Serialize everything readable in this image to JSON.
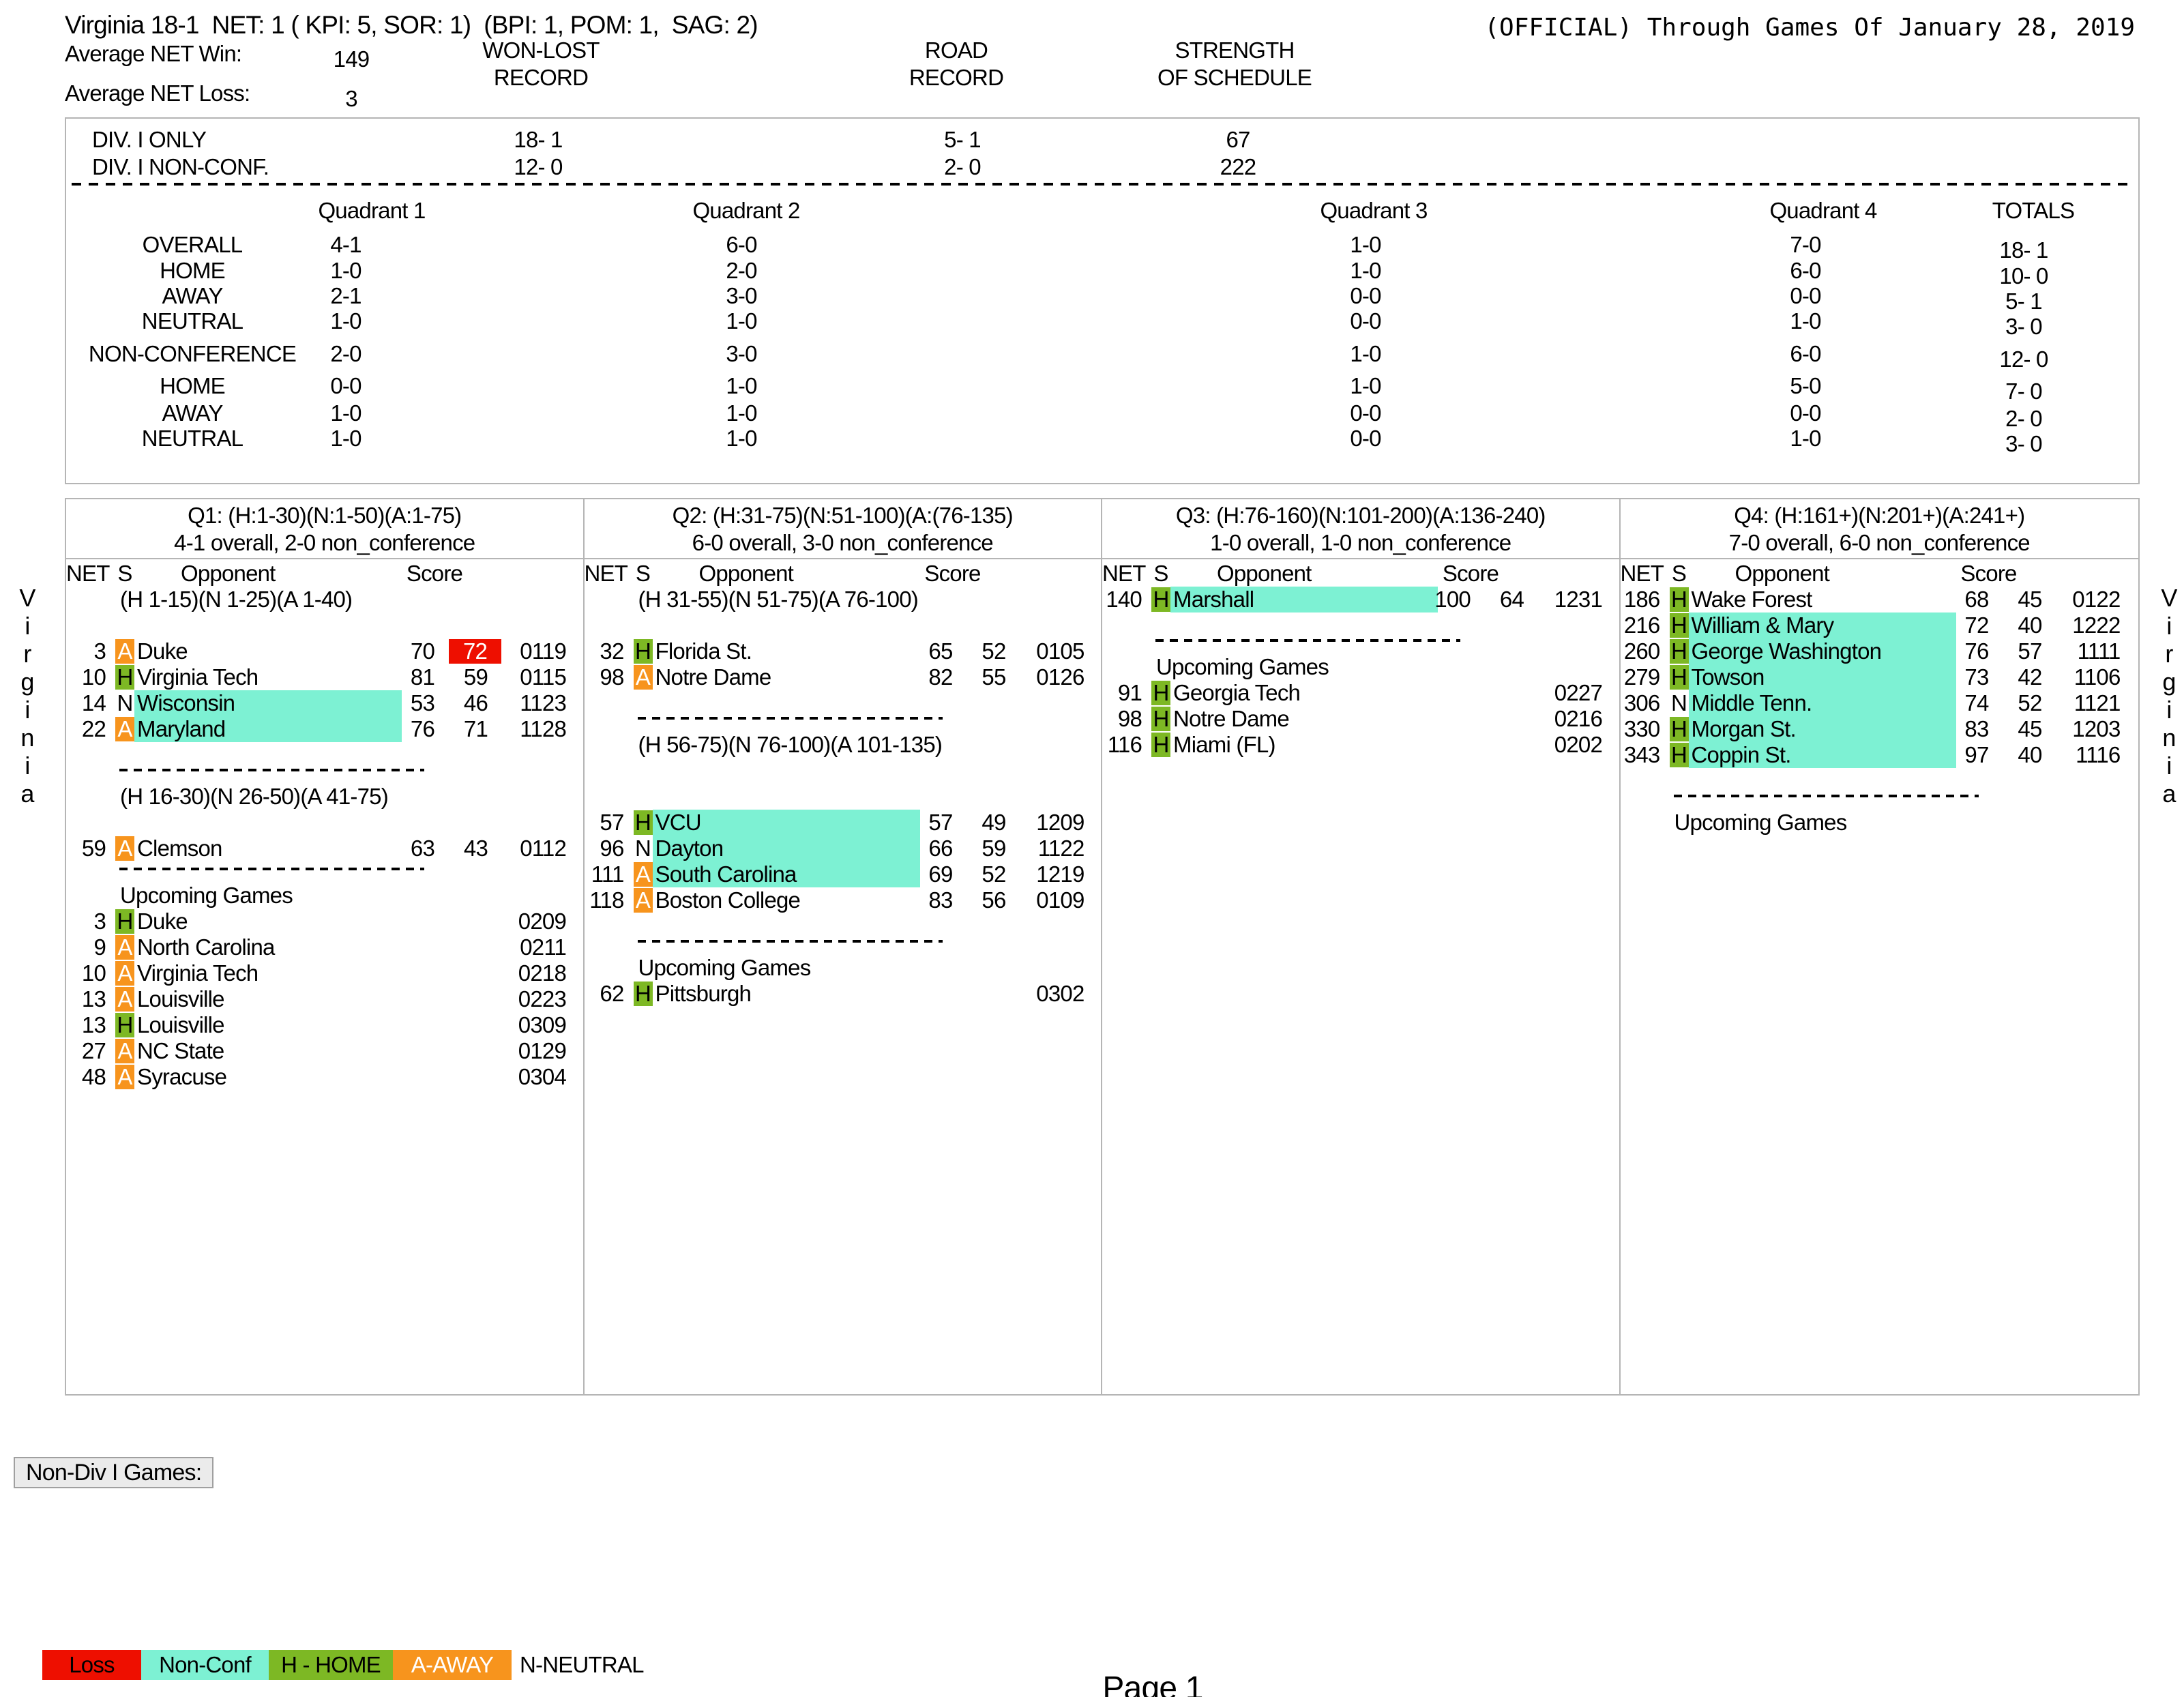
{
  "colors": {
    "loss_red": "#ee0f00",
    "nonconf_aqua": "#7df1d3",
    "home_green": "#7db824",
    "away_orange": "#f7941d",
    "border_gray": "#b5b5b5"
  },
  "header": {
    "title": "Virginia 18-1  NET: 1 ( KPI: 5, SOR: 1)  (BPI: 1, POM: 1,  SAG: 2)",
    "official": "(OFFICIAL) Through Games Of January 28, 2019",
    "avg_net_win_label": "Average NET Win:",
    "avg_net_win": "149",
    "avg_net_loss_label": "Average NET Loss:",
    "avg_net_loss": "3",
    "won_lost": [
      "WON-LOST",
      "RECORD"
    ],
    "road": [
      "ROAD",
      "RECORD"
    ],
    "sos": [
      "STRENGTH",
      "OF SCHEDULE"
    ]
  },
  "summary": {
    "div_rows": [
      {
        "label": "DIV. I ONLY",
        "won_lost": "18- 1",
        "road": "5- 1",
        "sos": "67"
      },
      {
        "label": "DIV. I NON-CONF.",
        "won_lost": "12- 0",
        "road": "2- 0",
        "sos": "222"
      }
    ],
    "quadrant_headers": [
      "Quadrant 1",
      "Quadrant 2",
      "Quadrant 3",
      "Quadrant 4",
      "TOTALS"
    ],
    "rows": [
      {
        "label": "OVERALL",
        "q1": "4-1",
        "q2": "6-0",
        "q3": "1-0",
        "q4": "7-0",
        "total": "18- 1"
      },
      {
        "label": "HOME",
        "q1": "1-0",
        "q2": "2-0",
        "q3": "1-0",
        "q4": "6-0",
        "total": "10- 0"
      },
      {
        "label": "AWAY",
        "q1": "2-1",
        "q2": "3-0",
        "q3": "0-0",
        "q4": "0-0",
        "total": "5- 1"
      },
      {
        "label": "NEUTRAL",
        "q1": "1-0",
        "q2": "1-0",
        "q3": "0-0",
        "q4": "1-0",
        "total": "3- 0"
      },
      {
        "label": "NON-CONFERENCE",
        "q1": "2-0",
        "q2": "3-0",
        "q3": "1-0",
        "q4": "6-0",
        "total": "12- 0"
      },
      {
        "label": "HOME",
        "q1": "0-0",
        "q2": "1-0",
        "q3": "1-0",
        "q4": "5-0",
        "total": "7- 0"
      },
      {
        "label": "AWAY",
        "q1": "1-0",
        "q2": "1-0",
        "q3": "0-0",
        "q4": "0-0",
        "total": "2- 0"
      },
      {
        "label": "NEUTRAL",
        "q1": "1-0",
        "q2": "1-0",
        "q3": "0-0",
        "q4": "1-0",
        "total": "3- 0"
      }
    ]
  },
  "columns": {
    "net": "NET",
    "site": "S",
    "opponent": "Opponent",
    "score": "Score"
  },
  "panels": [
    {
      "title": "Q1: (H:1-30)(N:1-50)(A:1-75)",
      "record": "4-1 overall, 2-0 non_conference",
      "rows": [
        {
          "type": "colheader"
        },
        {
          "type": "range",
          "text": "(H 1-15)(N 1-25)(A 1-40)"
        },
        {
          "type": "blank"
        },
        {
          "type": "game",
          "net": "3",
          "site": "A",
          "opp": "Duke",
          "w": "70",
          "l": "72",
          "date": "0119",
          "loss": true
        },
        {
          "type": "game",
          "net": "10",
          "site": "H",
          "opp": "Virginia Tech",
          "w": "81",
          "l": "59",
          "date": "0115"
        },
        {
          "type": "game",
          "net": "14",
          "site": "N",
          "opp": "Wisconsin",
          "w": "53",
          "l": "46",
          "date": "1123",
          "nc": true
        },
        {
          "type": "game",
          "net": "22",
          "site": "A",
          "opp": "Maryland",
          "w": "76",
          "l": "71",
          "date": "1128",
          "nc": true
        },
        {
          "type": "gap"
        },
        {
          "type": "dash"
        },
        {
          "type": "range",
          "text": "(H 16-30)(N 26-50)(A 41-75)"
        },
        {
          "type": "blank"
        },
        {
          "type": "game",
          "net": "59",
          "site": "A",
          "opp": "Clemson",
          "w": "63",
          "l": "43",
          "date": "0112"
        },
        {
          "type": "dash"
        },
        {
          "type": "label",
          "text": "Upcoming Games"
        },
        {
          "type": "game",
          "net": "3",
          "site": "H",
          "opp": "Duke",
          "date": "0209"
        },
        {
          "type": "game",
          "net": "9",
          "site": "A",
          "opp": "North Carolina",
          "date": "0211"
        },
        {
          "type": "game",
          "net": "10",
          "site": "A",
          "opp": "Virginia Tech",
          "date": "0218"
        },
        {
          "type": "game",
          "net": "13",
          "site": "A",
          "opp": "Louisville",
          "date": "0223"
        },
        {
          "type": "game",
          "net": "13",
          "site": "H",
          "opp": "Louisville",
          "date": "0309"
        },
        {
          "type": "game",
          "net": "27",
          "site": "A",
          "opp": "NC State",
          "date": "0129"
        },
        {
          "type": "game",
          "net": "48",
          "site": "A",
          "opp": "Syracuse",
          "date": "0304"
        }
      ]
    },
    {
      "title": "Q2: (H:31-75)(N:51-100)(A:(76-135)",
      "record": "6-0 overall, 3-0 non_conference",
      "rows": [
        {
          "type": "colheader"
        },
        {
          "type": "range",
          "text": "(H 31-55)(N 51-75)(A 76-100)"
        },
        {
          "type": "blank"
        },
        {
          "type": "game",
          "net": "32",
          "site": "H",
          "opp": "Florida St.",
          "w": "65",
          "l": "52",
          "date": "0105"
        },
        {
          "type": "game",
          "net": "98",
          "site": "A",
          "opp": "Notre Dame",
          "w": "82",
          "l": "55",
          "date": "0126"
        },
        {
          "type": "gap"
        },
        {
          "type": "dash"
        },
        {
          "type": "range",
          "text": "(H 56-75)(N 76-100)(A 101-135)"
        },
        {
          "type": "blank"
        },
        {
          "type": "blank"
        },
        {
          "type": "game",
          "net": "57",
          "site": "H",
          "opp": "VCU",
          "w": "57",
          "l": "49",
          "date": "1209",
          "nc": true
        },
        {
          "type": "game",
          "net": "96",
          "site": "N",
          "opp": "Dayton",
          "w": "66",
          "l": "59",
          "date": "1122",
          "nc": true
        },
        {
          "type": "game",
          "net": "111",
          "site": "A",
          "opp": "South Carolina",
          "w": "69",
          "l": "52",
          "date": "1219",
          "nc": true
        },
        {
          "type": "game",
          "net": "118",
          "site": "A",
          "opp": "Boston College",
          "w": "83",
          "l": "56",
          "date": "0109"
        },
        {
          "type": "gap"
        },
        {
          "type": "dash"
        },
        {
          "type": "label",
          "text": "Upcoming Games"
        },
        {
          "type": "game",
          "net": "62",
          "site": "H",
          "opp": "Pittsburgh",
          "date": "0302"
        }
      ]
    },
    {
      "title": "Q3: (H:76-160)(N:101-200)(A:136-240)",
      "record": "1-0 overall, 1-0 non_conference",
      "rows": [
        {
          "type": "colheader"
        },
        {
          "type": "game",
          "net": "140",
          "site": "H",
          "opp": "Marshall",
          "w": "100",
          "l": "64",
          "date": "1231",
          "nc": true
        },
        {
          "type": "gap"
        },
        {
          "type": "dash"
        },
        {
          "type": "label",
          "text": "Upcoming Games"
        },
        {
          "type": "game",
          "net": "91",
          "site": "H",
          "opp": "Georgia Tech",
          "date": "0227"
        },
        {
          "type": "game",
          "net": "98",
          "site": "H",
          "opp": "Notre Dame",
          "date": "0216"
        },
        {
          "type": "game",
          "net": "116",
          "site": "H",
          "opp": "Miami (FL)",
          "date": "0202"
        }
      ]
    },
    {
      "title": "Q4: (H:161+)(N:201+)(A:241+)",
      "record": "7-0 overall, 6-0 non_conference",
      "rows": [
        {
          "type": "colheader"
        },
        {
          "type": "game",
          "net": "186",
          "site": "H",
          "opp": "Wake Forest",
          "w": "68",
          "l": "45",
          "date": "0122"
        },
        {
          "type": "game",
          "net": "216",
          "site": "H",
          "opp": "William & Mary",
          "w": "72",
          "l": "40",
          "date": "1222",
          "nc": true
        },
        {
          "type": "game",
          "net": "260",
          "site": "H",
          "opp": "George Washington",
          "w": "76",
          "l": "57",
          "date": "1111",
          "nc": true
        },
        {
          "type": "game",
          "net": "279",
          "site": "H",
          "opp": "Towson",
          "w": "73",
          "l": "42",
          "date": "1106",
          "nc": true
        },
        {
          "type": "game",
          "net": "306",
          "site": "N",
          "opp": "Middle Tenn.",
          "w": "74",
          "l": "52",
          "date": "1121",
          "nc": true
        },
        {
          "type": "game",
          "net": "330",
          "site": "H",
          "opp": "Morgan St.",
          "w": "83",
          "l": "45",
          "date": "1203",
          "nc": true
        },
        {
          "type": "game",
          "net": "343",
          "site": "H",
          "opp": "Coppin St.",
          "w": "97",
          "l": "40",
          "date": "1116",
          "nc": true
        },
        {
          "type": "gap"
        },
        {
          "type": "dash"
        },
        {
          "type": "label",
          "text": "Upcoming Games"
        }
      ]
    }
  ],
  "non_div_label": "Non-Div I Games:",
  "legend": {
    "items": [
      {
        "label": "Loss",
        "bg": "#ee0f00",
        "fg": "#000000",
        "width": 145
      },
      {
        "label": "Non-Conf",
        "bg": "#7df1d3",
        "fg": "#000000",
        "width": 187
      },
      {
        "label": "H - HOME",
        "bg": "#7db824",
        "fg": "#000000",
        "width": 182
      },
      {
        "label": "A-AWAY",
        "bg": "#f7941d",
        "fg": "#ffffff",
        "width": 174
      },
      {
        "label": "N-NEUTRAL",
        "bg": "",
        "fg": "#000000",
        "width": 0
      }
    ]
  },
  "side_text": "Virginia",
  "footer": {
    "page": "Page 1"
  }
}
